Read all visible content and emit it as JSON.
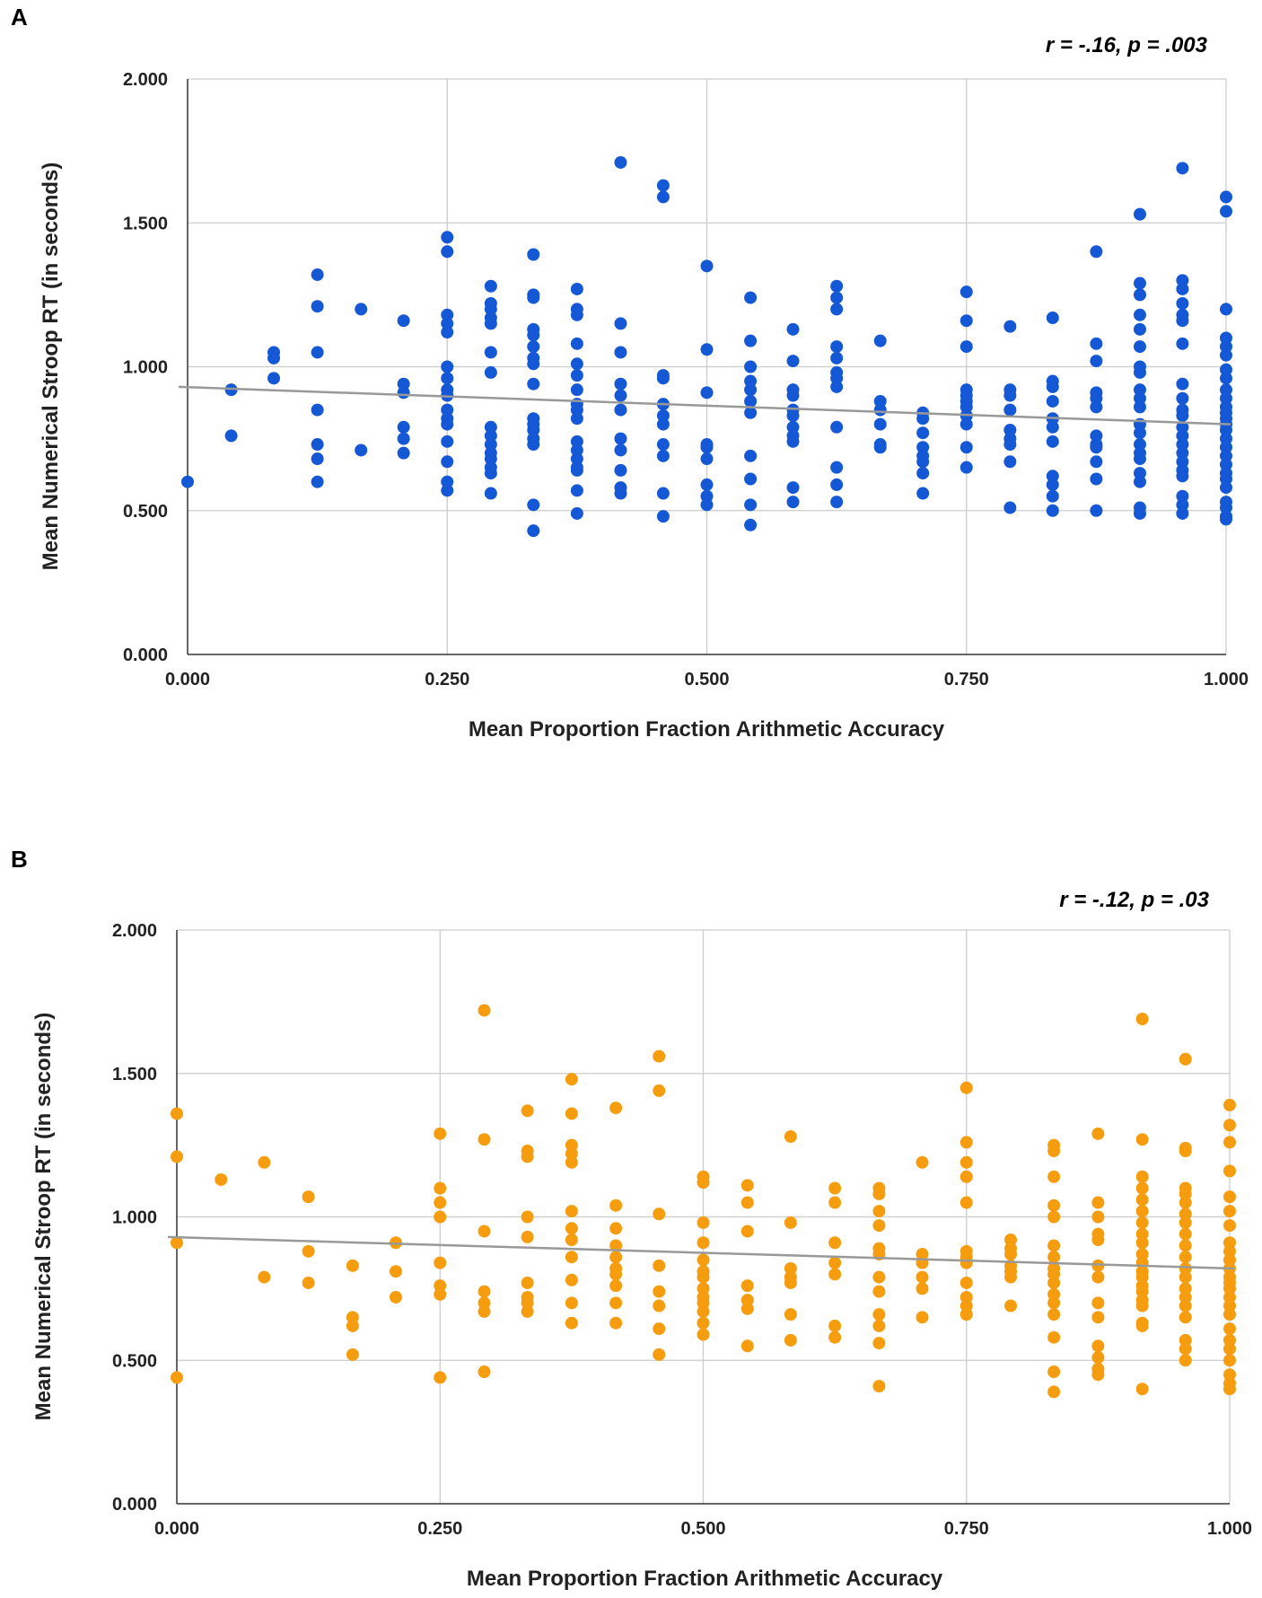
{
  "chart_data": [
    {
      "type": "scatter",
      "panel_label": "A",
      "annotation": "r = -.16, p = .003",
      "xlabel": "Mean Proportion Fraction Arithmetic Accuracy",
      "ylabel": "Mean Numerical Stroop RT (in seconds)",
      "xlim": [
        0,
        1
      ],
      "ylim": [
        0,
        2
      ],
      "xticks": [
        "0.000",
        "0.250",
        "0.500",
        "0.750",
        "1.000"
      ],
      "yticks": [
        "0.000",
        "0.500",
        "1.000",
        "1.500",
        "2.000"
      ],
      "grid": true,
      "color": "#1558d6",
      "trendline": {
        "x": [
          0,
          1
        ],
        "y": [
          0.93,
          0.8
        ]
      },
      "columns": [
        {
          "x": 0.0,
          "y": [
            0.6
          ]
        },
        {
          "x": 0.042,
          "y": [
            0.92,
            0.76
          ]
        },
        {
          "x": 0.083,
          "y": [
            1.05,
            1.03,
            0.96
          ]
        },
        {
          "x": 0.125,
          "y": [
            1.32,
            1.21,
            1.05,
            0.85,
            0.73,
            0.68,
            0.6
          ]
        },
        {
          "x": 0.167,
          "y": [
            1.2,
            0.71
          ]
        },
        {
          "x": 0.208,
          "y": [
            1.16,
            0.94,
            0.91,
            0.79,
            0.75,
            0.7
          ]
        },
        {
          "x": 0.25,
          "y": [
            1.45,
            1.4,
            1.18,
            1.15,
            1.12,
            1.0,
            0.96,
            0.92,
            0.9,
            0.85,
            0.82,
            0.8,
            0.74,
            0.67,
            0.6,
            0.57
          ]
        },
        {
          "x": 0.292,
          "y": [
            1.28,
            1.22,
            1.2,
            1.17,
            1.15,
            1.05,
            0.98,
            0.79,
            0.76,
            0.73,
            0.7,
            0.68,
            0.65,
            0.63,
            0.56
          ]
        },
        {
          "x": 0.333,
          "y": [
            1.39,
            1.25,
            1.24,
            1.13,
            1.11,
            1.07,
            1.03,
            1.01,
            0.94,
            0.82,
            0.8,
            0.78,
            0.75,
            0.73,
            0.52,
            0.43
          ]
        },
        {
          "x": 0.375,
          "y": [
            1.27,
            1.2,
            1.18,
            1.08,
            1.01,
            0.97,
            0.92,
            0.87,
            0.85,
            0.82,
            0.74,
            0.71,
            0.68,
            0.65,
            0.64,
            0.57,
            0.49
          ]
        },
        {
          "x": 0.417,
          "y": [
            1.71,
            1.15,
            1.05,
            0.94,
            0.9,
            0.85,
            0.75,
            0.71,
            0.64,
            0.58,
            0.56
          ]
        },
        {
          "x": 0.458,
          "y": [
            1.63,
            1.59,
            0.97,
            0.96,
            0.87,
            0.83,
            0.8,
            0.73,
            0.69,
            0.56,
            0.48
          ]
        },
        {
          "x": 0.5,
          "y": [
            1.35,
            1.06,
            0.91,
            0.73,
            0.72,
            0.68,
            0.59,
            0.55,
            0.52
          ]
        },
        {
          "x": 0.542,
          "y": [
            1.24,
            1.09,
            1.0,
            0.95,
            0.92,
            0.88,
            0.84,
            0.69,
            0.61,
            0.52,
            0.45
          ]
        },
        {
          "x": 0.583,
          "y": [
            1.13,
            1.02,
            0.92,
            0.9,
            0.85,
            0.83,
            0.79,
            0.76,
            0.74,
            0.58,
            0.53
          ]
        },
        {
          "x": 0.625,
          "y": [
            1.28,
            1.24,
            1.2,
            1.07,
            1.03,
            0.98,
            0.96,
            0.93,
            0.79,
            0.65,
            0.59,
            0.53
          ]
        },
        {
          "x": 0.667,
          "y": [
            1.09,
            0.88,
            0.85,
            0.8,
            0.73,
            0.72
          ]
        },
        {
          "x": 0.708,
          "y": [
            0.84,
            0.82,
            0.77,
            0.72,
            0.69,
            0.67,
            0.63,
            0.56
          ]
        },
        {
          "x": 0.75,
          "y": [
            1.26,
            1.16,
            1.07,
            0.92,
            0.9,
            0.88,
            0.86,
            0.83,
            0.8,
            0.72,
            0.65
          ]
        },
        {
          "x": 0.792,
          "y": [
            1.14,
            0.92,
            0.9,
            0.85,
            0.78,
            0.75,
            0.73,
            0.67,
            0.51
          ]
        },
        {
          "x": 0.833,
          "y": [
            1.17,
            0.95,
            0.93,
            0.88,
            0.82,
            0.79,
            0.74,
            0.62,
            0.59,
            0.55,
            0.5
          ]
        },
        {
          "x": 0.875,
          "y": [
            1.4,
            1.08,
            1.02,
            0.91,
            0.89,
            0.86,
            0.76,
            0.73,
            0.72,
            0.67,
            0.61,
            0.5
          ]
        },
        {
          "x": 0.917,
          "y": [
            1.53,
            1.29,
            1.25,
            1.18,
            1.13,
            1.07,
            1.0,
            0.98,
            0.92,
            0.89,
            0.86,
            0.8,
            0.77,
            0.73,
            0.7,
            0.68,
            0.63,
            0.6,
            0.51,
            0.49
          ]
        },
        {
          "x": 0.958,
          "y": [
            1.69,
            1.3,
            1.27,
            1.22,
            1.18,
            1.16,
            1.08,
            0.94,
            0.89,
            0.85,
            0.83,
            0.79,
            0.76,
            0.73,
            0.7,
            0.67,
            0.64,
            0.62,
            0.55,
            0.52,
            0.49
          ]
        },
        {
          "x": 1.0,
          "y": [
            1.59,
            1.54,
            1.2,
            1.1,
            1.07,
            1.04,
            0.99,
            0.96,
            0.92,
            0.89,
            0.86,
            0.84,
            0.82,
            0.8,
            0.78,
            0.75,
            0.72,
            0.69,
            0.66,
            0.63,
            0.61,
            0.58,
            0.53,
            0.51,
            0.48,
            0.47
          ]
        }
      ]
    },
    {
      "type": "scatter",
      "panel_label": "B",
      "annotation": "r = -.12, p = .03",
      "xlabel": "Mean Proportion Fraction Arithmetic Accuracy",
      "ylabel": "Mean Numerical Stroop RT (in seconds)",
      "xlim": [
        0,
        1
      ],
      "ylim": [
        0,
        2
      ],
      "xticks": [
        "0.000",
        "0.250",
        "0.500",
        "0.750",
        "1.000"
      ],
      "yticks": [
        "0.000",
        "0.500",
        "1.000",
        "1.500",
        "2.000"
      ],
      "grid": true,
      "color": "#f59d0e",
      "trendline": {
        "x": [
          0,
          1
        ],
        "y": [
          0.93,
          0.82
        ]
      },
      "columns": [
        {
          "x": 0.0,
          "y": [
            1.36,
            1.21,
            0.91,
            0.44
          ]
        },
        {
          "x": 0.042,
          "y": [
            1.13
          ]
        },
        {
          "x": 0.083,
          "y": [
            1.19,
            0.79
          ]
        },
        {
          "x": 0.125,
          "y": [
            1.07,
            0.88,
            0.77
          ]
        },
        {
          "x": 0.167,
          "y": [
            0.83,
            0.65,
            0.62,
            0.52
          ]
        },
        {
          "x": 0.208,
          "y": [
            0.91,
            0.81,
            0.72
          ]
        },
        {
          "x": 0.25,
          "y": [
            1.29,
            1.1,
            1.05,
            1.0,
            0.84,
            0.76,
            0.73,
            0.44
          ]
        },
        {
          "x": 0.292,
          "y": [
            1.72,
            1.27,
            0.95,
            0.74,
            0.7,
            0.67,
            0.46
          ]
        },
        {
          "x": 0.333,
          "y": [
            1.37,
            1.23,
            1.21,
            1.0,
            0.93,
            0.77,
            0.72,
            0.7,
            0.67
          ]
        },
        {
          "x": 0.375,
          "y": [
            1.48,
            1.36,
            1.25,
            1.22,
            1.19,
            1.02,
            0.96,
            0.92,
            0.86,
            0.78,
            0.7,
            0.63
          ]
        },
        {
          "x": 0.417,
          "y": [
            1.38,
            1.04,
            0.96,
            0.9,
            0.86,
            0.82,
            0.8,
            0.76,
            0.7,
            0.63
          ]
        },
        {
          "x": 0.458,
          "y": [
            1.56,
            1.44,
            1.01,
            0.83,
            0.74,
            0.69,
            0.61,
            0.52
          ]
        },
        {
          "x": 0.5,
          "y": [
            1.14,
            1.12,
            0.98,
            0.91,
            0.85,
            0.81,
            0.79,
            0.75,
            0.72,
            0.7,
            0.67,
            0.63,
            0.59
          ]
        },
        {
          "x": 0.542,
          "y": [
            1.11,
            1.05,
            0.95,
            0.76,
            0.71,
            0.68,
            0.55
          ]
        },
        {
          "x": 0.583,
          "y": [
            1.28,
            0.98,
            0.82,
            0.79,
            0.77,
            0.66,
            0.57
          ]
        },
        {
          "x": 0.625,
          "y": [
            1.1,
            1.05,
            0.91,
            0.84,
            0.8,
            0.62,
            0.58
          ]
        },
        {
          "x": 0.667,
          "y": [
            1.1,
            1.08,
            1.02,
            0.97,
            0.89,
            0.87,
            0.79,
            0.74,
            0.66,
            0.62,
            0.56,
            0.41
          ]
        },
        {
          "x": 0.708,
          "y": [
            1.19,
            0.87,
            0.84,
            0.79,
            0.75,
            0.65
          ]
        },
        {
          "x": 0.75,
          "y": [
            1.45,
            1.26,
            1.19,
            1.14,
            1.05,
            0.88,
            0.86,
            0.84,
            0.77,
            0.72,
            0.69,
            0.66
          ]
        },
        {
          "x": 0.792,
          "y": [
            0.92,
            0.89,
            0.87,
            0.83,
            0.81,
            0.79,
            0.69
          ]
        },
        {
          "x": 0.833,
          "y": [
            1.25,
            1.23,
            1.14,
            1.04,
            1.0,
            0.9,
            0.86,
            0.82,
            0.8,
            0.77,
            0.73,
            0.7,
            0.66,
            0.58,
            0.46,
            0.39
          ]
        },
        {
          "x": 0.875,
          "y": [
            1.29,
            1.05,
            1.0,
            0.94,
            0.92,
            0.83,
            0.79,
            0.7,
            0.65,
            0.55,
            0.51,
            0.47,
            0.45
          ]
        },
        {
          "x": 0.917,
          "y": [
            1.69,
            1.27,
            1.14,
            1.1,
            1.06,
            1.02,
            0.98,
            0.94,
            0.91,
            0.87,
            0.84,
            0.81,
            0.79,
            0.76,
            0.74,
            0.71,
            0.69,
            0.63,
            0.62,
            0.4
          ]
        },
        {
          "x": 0.958,
          "y": [
            1.55,
            1.24,
            1.23,
            1.1,
            1.08,
            1.05,
            1.01,
            0.98,
            0.94,
            0.9,
            0.86,
            0.82,
            0.79,
            0.75,
            0.72,
            0.69,
            0.65,
            0.57,
            0.54,
            0.5
          ]
        },
        {
          "x": 1.0,
          "y": [
            1.39,
            1.32,
            1.26,
            1.16,
            1.07,
            1.02,
            0.97,
            0.91,
            0.88,
            0.85,
            0.82,
            0.79,
            0.77,
            0.75,
            0.72,
            0.69,
            0.66,
            0.61,
            0.57,
            0.54,
            0.5,
            0.45,
            0.42,
            0.4
          ]
        }
      ]
    }
  ]
}
